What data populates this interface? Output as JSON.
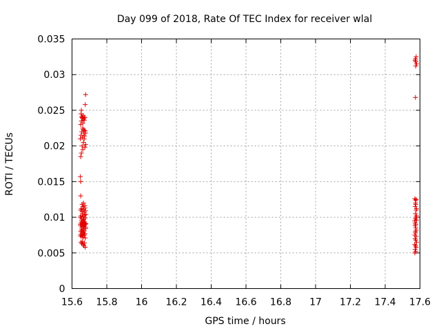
{
  "chart_data": {
    "type": "scatter",
    "title": "Day 099 of 2018, Rate Of TEC Index for receiver wlal",
    "xlabel": "GPS time / hours",
    "ylabel": "ROTI / TECUs",
    "xlim": [
      15.6,
      17.6
    ],
    "ylim": [
      0,
      0.035
    ],
    "xticks": [
      "15.6",
      "15.8",
      "16",
      "16.2",
      "16.4",
      "16.6",
      "16.8",
      "17",
      "17.2",
      "17.4",
      "17.6"
    ],
    "yticks": [
      "0",
      "0.005",
      "0.01",
      "0.015",
      "0.02",
      "0.025",
      "0.03",
      "0.035"
    ],
    "grid": true,
    "marker": "+",
    "marker_color": "#e00000",
    "series": [
      {
        "x": [
          15.648,
          15.65,
          15.652,
          15.654,
          15.656,
          15.658,
          15.66,
          15.662,
          15.664,
          15.666,
          15.668,
          15.67,
          15.672,
          15.674,
          15.676,
          15.678,
          15.68,
          15.648,
          15.652,
          15.656,
          15.66,
          15.664,
          15.668,
          15.672,
          15.676,
          15.68,
          15.65,
          15.654,
          15.658,
          15.662,
          15.666,
          15.67,
          15.674,
          15.678,
          15.648,
          15.652,
          15.656,
          15.66,
          15.664,
          15.668,
          15.672,
          15.676,
          15.65,
          15.654,
          15.658,
          15.662,
          15.666,
          15.67,
          15.674,
          15.678,
          15.652,
          15.656,
          15.66,
          15.664,
          15.668,
          15.672,
          15.676,
          15.65,
          15.658,
          15.666,
          15.674,
          15.648,
          15.65,
          15.65,
          15.654,
          15.658,
          15.662,
          15.666,
          15.67,
          15.674,
          15.678,
          15.648,
          15.652,
          15.656,
          15.66,
          15.664,
          15.668,
          15.672,
          15.676,
          15.65,
          15.654,
          15.658,
          15.662,
          15.666,
          15.67,
          15.674,
          15.652,
          15.656,
          15.66,
          15.664,
          15.668,
          15.672,
          15.654,
          15.662,
          15.67,
          15.678,
          15.676,
          15.678
        ],
        "y": [
          0.009,
          0.0088,
          0.0092,
          0.0095,
          0.0085,
          0.009,
          0.0093,
          0.0087,
          0.0091,
          0.0096,
          0.0089,
          0.0094,
          0.0088,
          0.0092,
          0.009,
          0.0086,
          0.0091,
          0.01,
          0.0102,
          0.0098,
          0.0105,
          0.0101,
          0.0097,
          0.0103,
          0.0099,
          0.0104,
          0.008,
          0.0082,
          0.0078,
          0.0083,
          0.0079,
          0.0081,
          0.0077,
          0.0084,
          0.0075,
          0.0073,
          0.0076,
          0.0074,
          0.0072,
          0.0077,
          0.0075,
          0.0071,
          0.011,
          0.0112,
          0.0108,
          0.0115,
          0.0111,
          0.0107,
          0.0113,
          0.0109,
          0.0065,
          0.0063,
          0.0066,
          0.0062,
          0.006,
          0.0064,
          0.0058,
          0.013,
          0.0118,
          0.012,
          0.0116,
          0.0157,
          0.015,
          0.0185,
          0.019,
          0.02,
          0.0195,
          0.0205,
          0.021,
          0.0198,
          0.0202,
          0.021,
          0.0215,
          0.022,
          0.0212,
          0.0223,
          0.0218,
          0.0214,
          0.0221,
          0.023,
          0.0235,
          0.024,
          0.0232,
          0.0238,
          0.0236,
          0.024,
          0.0245,
          0.0241,
          0.0239,
          0.0243,
          0.0238,
          0.024,
          0.025,
          0.0225,
          0.0222,
          0.0218,
          0.0258,
          0.0272
        ]
      },
      {
        "x": [
          17.57,
          17.572,
          17.574,
          17.576,
          17.578,
          17.58,
          17.572,
          17.576,
          17.58,
          17.574,
          17.578,
          17.57,
          17.574,
          17.578,
          17.572,
          17.576,
          17.58,
          17.57,
          17.574,
          17.578,
          17.572,
          17.576,
          17.57,
          17.574,
          17.578,
          17.572,
          17.576,
          17.58,
          17.574,
          17.578,
          17.57,
          17.576,
          17.572,
          17.574,
          17.576,
          17.578,
          17.58,
          17.576,
          17.574
        ],
        "y": [
          0.0095,
          0.0092,
          0.0098,
          0.009,
          0.01,
          0.0096,
          0.0088,
          0.0085,
          0.0102,
          0.008,
          0.0082,
          0.0075,
          0.0078,
          0.0073,
          0.007,
          0.0068,
          0.0065,
          0.0062,
          0.006,
          0.0058,
          0.0055,
          0.0052,
          0.005,
          0.0105,
          0.011,
          0.0115,
          0.0118,
          0.0112,
          0.012,
          0.0125,
          0.0126,
          0.0124,
          0.032,
          0.0322,
          0.0318,
          0.0325,
          0.0315,
          0.0312,
          0.0268
        ]
      }
    ]
  }
}
